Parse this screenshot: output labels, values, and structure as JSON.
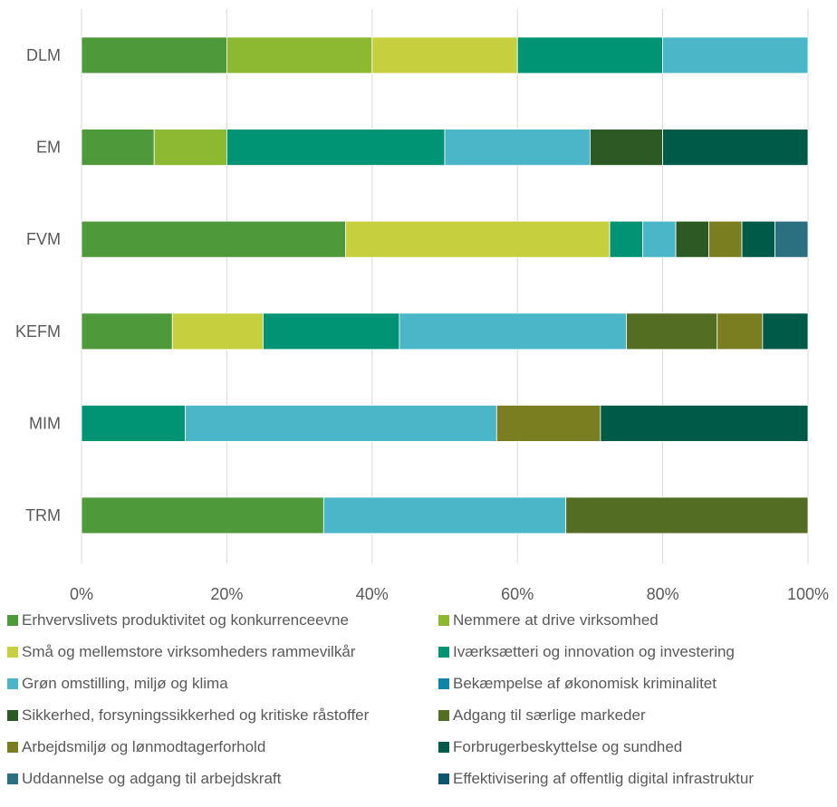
{
  "chart_data": {
    "type": "bar",
    "orientation": "horizontal",
    "stacked": "percent",
    "categories": [
      "DLM",
      "EM",
      "FVM",
      "KEFM",
      "MIM",
      "TRM"
    ],
    "xlim": [
      0,
      100
    ],
    "xticks": [
      "0%",
      "20%",
      "40%",
      "60%",
      "80%",
      "100%"
    ],
    "grid": "vertical",
    "legend_position": "bottom",
    "series": [
      {
        "name": "Erhvervslivets produktivitet og konkurrenceevne",
        "color": "#4e9a3b",
        "values": [
          20,
          10,
          36.36,
          12.5,
          0,
          33.33
        ]
      },
      {
        "name": "Nemmere at drive virksomhed",
        "color": "#8cb832",
        "values": [
          20,
          10,
          0,
          0,
          0,
          0
        ]
      },
      {
        "name": "Små og mellemstore virksomheders rammevilkår",
        "color": "#c6cf3d",
        "values": [
          20,
          0,
          36.36,
          12.5,
          0,
          0
        ]
      },
      {
        "name": "Iværksætteri og innovation og investering",
        "color": "#009474",
        "values": [
          20,
          30,
          4.55,
          18.75,
          14.29,
          0
        ]
      },
      {
        "name": "Grøn omstilling, miljø og klima",
        "color": "#4bb6c7",
        "values": [
          20,
          20,
          4.55,
          31.25,
          42.86,
          33.33
        ]
      },
      {
        "name": "Bekæmpelse af økonomisk kriminalitet",
        "color": "#0e84a8",
        "values": [
          0,
          0,
          0,
          0,
          0,
          0
        ]
      },
      {
        "name": "Sikkerhed, forsyningssikkerhed og kritiske råstoffer",
        "color": "#2d5a24",
        "values": [
          0,
          10,
          4.55,
          0,
          0,
          0
        ]
      },
      {
        "name": "Adgang til særlige markeder",
        "color": "#536e23",
        "values": [
          0,
          0,
          0,
          12.5,
          0,
          33.33
        ]
      },
      {
        "name": "Arbejdsmiljø og lønmodtagerforhold",
        "color": "#7a7d20",
        "values": [
          0,
          0,
          4.55,
          6.25,
          14.29,
          0
        ]
      },
      {
        "name": "Forbrugerbeskyttelse og sundhed",
        "color": "#005a48",
        "values": [
          0,
          20,
          4.55,
          6.25,
          28.57,
          0
        ]
      },
      {
        "name": "Uddannelse og adgang til arbejdskraft",
        "color": "#2a7080",
        "values": [
          0,
          0,
          4.55,
          0,
          0,
          0
        ]
      },
      {
        "name": "Effektivisering af offentlig digital infrastruktur",
        "color": "#0c5570",
        "values": [
          0,
          0,
          0,
          0,
          0,
          0
        ]
      }
    ]
  }
}
